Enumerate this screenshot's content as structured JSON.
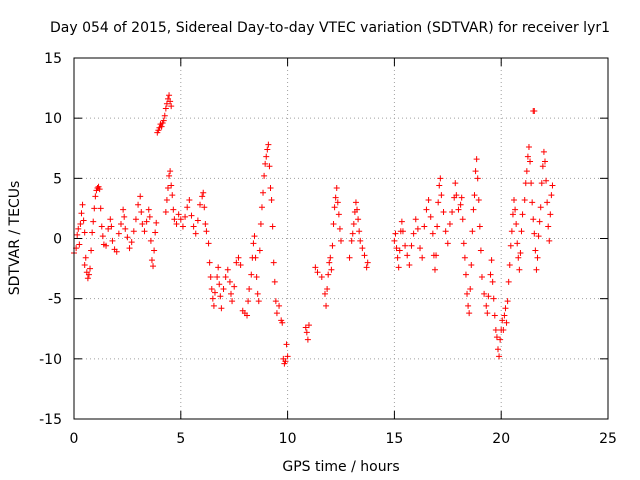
{
  "chart_data": {
    "type": "scatter",
    "title": "Day 054 of 2015, Sidereal Day-to-day VTEC variation (SDTVAR) for receiver lyr1",
    "xlabel": "GPS time / hours",
    "ylabel": "SDTVAR / TECUs",
    "xlim": [
      0,
      25
    ],
    "ylim": [
      -15,
      15
    ],
    "xticks": [
      "0",
      "5",
      "10",
      "15",
      "20",
      "25"
    ],
    "yticks": [
      "-15",
      "-10",
      "-5",
      "0",
      "5",
      "10",
      "15"
    ],
    "grid": true,
    "marker": "+",
    "color": "#ff0000",
    "series": [
      {
        "name": "SDTVAR",
        "points": [
          [
            0.0,
            -1.2
          ],
          [
            0.1,
            -0.8
          ],
          [
            0.15,
            0.3
          ],
          [
            0.2,
            0.8
          ],
          [
            0.25,
            -0.5
          ],
          [
            0.3,
            1.2
          ],
          [
            0.35,
            2.1
          ],
          [
            0.4,
            2.8
          ],
          [
            0.45,
            1.5
          ],
          [
            0.5,
            0.5
          ],
          [
            0.5,
            -2.2
          ],
          [
            0.55,
            -1.6
          ],
          [
            0.6,
            -2.8
          ],
          [
            0.65,
            -3.3
          ],
          [
            0.7,
            -3.0
          ],
          [
            0.75,
            -2.5
          ],
          [
            0.8,
            -1.0
          ],
          [
            0.85,
            0.5
          ],
          [
            0.9,
            1.4
          ],
          [
            0.95,
            2.5
          ],
          [
            1.0,
            3.5
          ],
          [
            1.05,
            4.0
          ],
          [
            1.1,
            4.2
          ],
          [
            1.15,
            4.3
          ],
          [
            1.2,
            4.1
          ],
          [
            1.25,
            2.5
          ],
          [
            1.3,
            1.0
          ],
          [
            1.35,
            0.2
          ],
          [
            1.4,
            -0.5
          ],
          [
            1.5,
            -0.6
          ],
          [
            1.6,
            0.8
          ],
          [
            1.7,
            1.6
          ],
          [
            1.75,
            1.0
          ],
          [
            1.8,
            -0.2
          ],
          [
            1.9,
            -0.9
          ],
          [
            2.0,
            -1.1
          ],
          [
            2.1,
            0.4
          ],
          [
            2.2,
            1.2
          ],
          [
            2.3,
            2.4
          ],
          [
            2.35,
            1.8
          ],
          [
            2.4,
            0.8
          ],
          [
            2.5,
            0.1
          ],
          [
            2.6,
            -0.8
          ],
          [
            2.7,
            -0.3
          ],
          [
            2.8,
            0.6
          ],
          [
            2.9,
            1.6
          ],
          [
            3.0,
            2.8
          ],
          [
            3.1,
            3.5
          ],
          [
            3.15,
            2.2
          ],
          [
            3.2,
            1.2
          ],
          [
            3.3,
            0.6
          ],
          [
            3.4,
            1.4
          ],
          [
            3.5,
            2.4
          ],
          [
            3.55,
            1.8
          ],
          [
            3.6,
            -0.2
          ],
          [
            3.65,
            -1.8
          ],
          [
            3.7,
            -2.3
          ],
          [
            3.75,
            -1.0
          ],
          [
            3.8,
            0.5
          ],
          [
            3.85,
            1.3
          ],
          [
            3.9,
            8.8
          ],
          [
            3.95,
            9.0
          ],
          [
            4.0,
            9.2
          ],
          [
            4.05,
            9.5
          ],
          [
            4.1,
            9.3
          ],
          [
            4.15,
            9.6
          ],
          [
            4.2,
            9.8
          ],
          [
            4.25,
            10.2
          ],
          [
            4.3,
            10.8
          ],
          [
            4.35,
            11.2
          ],
          [
            4.4,
            11.6
          ],
          [
            4.45,
            11.9
          ],
          [
            4.5,
            11.4
          ],
          [
            4.55,
            11.0
          ],
          [
            4.3,
            2.2
          ],
          [
            4.35,
            3.2
          ],
          [
            4.4,
            4.2
          ],
          [
            4.45,
            5.2
          ],
          [
            4.5,
            5.6
          ],
          [
            4.55,
            4.4
          ],
          [
            4.6,
            3.6
          ],
          [
            4.65,
            2.4
          ],
          [
            4.7,
            1.6
          ],
          [
            4.8,
            1.2
          ],
          [
            4.9,
            2.0
          ],
          [
            5.0,
            1.6
          ],
          [
            5.1,
            1.0
          ],
          [
            5.2,
            1.8
          ],
          [
            5.3,
            2.6
          ],
          [
            5.4,
            3.2
          ],
          [
            5.5,
            1.9
          ],
          [
            5.6,
            1.0
          ],
          [
            5.7,
            0.4
          ],
          [
            5.8,
            1.5
          ],
          [
            5.9,
            2.8
          ],
          [
            6.0,
            3.5
          ],
          [
            6.05,
            3.8
          ],
          [
            6.1,
            2.6
          ],
          [
            6.15,
            1.2
          ],
          [
            6.2,
            0.6
          ],
          [
            6.3,
            -0.4
          ],
          [
            6.35,
            -2.0
          ],
          [
            6.4,
            -3.2
          ],
          [
            6.45,
            -4.2
          ],
          [
            6.5,
            -5.0
          ],
          [
            6.55,
            -5.6
          ],
          [
            6.6,
            -4.5
          ],
          [
            6.7,
            -3.2
          ],
          [
            6.75,
            -2.4
          ],
          [
            6.8,
            -3.8
          ],
          [
            6.85,
            -4.8
          ],
          [
            6.9,
            -5.8
          ],
          [
            7.0,
            -4.2
          ],
          [
            7.1,
            -3.2
          ],
          [
            7.2,
            -2.6
          ],
          [
            7.3,
            -3.6
          ],
          [
            7.35,
            -4.6
          ],
          [
            7.4,
            -5.2
          ],
          [
            7.5,
            -4.0
          ],
          [
            7.6,
            -2.0
          ],
          [
            7.7,
            -1.6
          ],
          [
            7.8,
            -2.2
          ],
          [
            7.9,
            -6.0
          ],
          [
            8.0,
            -6.2
          ],
          [
            8.1,
            -6.4
          ],
          [
            8.15,
            -5.2
          ],
          [
            8.2,
            -4.2
          ],
          [
            8.3,
            -3.0
          ],
          [
            8.35,
            -1.6
          ],
          [
            8.4,
            -0.4
          ],
          [
            8.45,
            0.2
          ],
          [
            8.5,
            -1.6
          ],
          [
            8.55,
            -3.2
          ],
          [
            8.6,
            -4.6
          ],
          [
            8.65,
            -5.2
          ],
          [
            8.7,
            -1.0
          ],
          [
            8.75,
            1.2
          ],
          [
            8.8,
            2.6
          ],
          [
            8.85,
            3.8
          ],
          [
            8.9,
            5.2
          ],
          [
            8.95,
            6.2
          ],
          [
            9.0,
            6.8
          ],
          [
            9.05,
            7.4
          ],
          [
            9.1,
            7.8
          ],
          [
            9.15,
            6.0
          ],
          [
            9.2,
            4.2
          ],
          [
            9.25,
            3.2
          ],
          [
            9.3,
            1.0
          ],
          [
            9.35,
            -2.0
          ],
          [
            9.4,
            -3.6
          ],
          [
            9.45,
            -5.2
          ],
          [
            9.5,
            -6.2
          ],
          [
            9.6,
            -5.6
          ],
          [
            9.7,
            -6.8
          ],
          [
            9.75,
            -7.0
          ],
          [
            9.8,
            -10.0
          ],
          [
            9.85,
            -10.4
          ],
          [
            9.9,
            -10.2
          ],
          [
            9.95,
            -8.8
          ],
          [
            10.0,
            -9.8
          ],
          [
            10.85,
            -7.4
          ],
          [
            10.9,
            -7.8
          ],
          [
            10.95,
            -8.4
          ],
          [
            11.0,
            -7.2
          ],
          [
            11.3,
            -2.4
          ],
          [
            11.4,
            -2.8
          ],
          [
            11.6,
            -3.2
          ],
          [
            11.75,
            -4.6
          ],
          [
            11.8,
            -5.6
          ],
          [
            11.85,
            -4.2
          ],
          [
            11.9,
            -3.0
          ],
          [
            11.95,
            -2.0
          ],
          [
            12.0,
            -1.6
          ],
          [
            12.05,
            -2.6
          ],
          [
            12.1,
            -0.6
          ],
          [
            12.15,
            1.2
          ],
          [
            12.2,
            2.6
          ],
          [
            12.25,
            3.4
          ],
          [
            12.3,
            4.2
          ],
          [
            12.35,
            3.0
          ],
          [
            12.4,
            2.0
          ],
          [
            12.45,
            0.8
          ],
          [
            12.5,
            -0.2
          ],
          [
            12.9,
            -1.6
          ],
          [
            13.0,
            -0.2
          ],
          [
            13.05,
            0.4
          ],
          [
            13.1,
            1.2
          ],
          [
            13.15,
            2.2
          ],
          [
            13.2,
            3.0
          ],
          [
            13.25,
            2.4
          ],
          [
            13.3,
            1.6
          ],
          [
            13.35,
            0.6
          ],
          [
            13.4,
            -0.2
          ],
          [
            13.5,
            -0.8
          ],
          [
            13.6,
            -1.4
          ],
          [
            13.7,
            -2.4
          ],
          [
            13.75,
            -2.0
          ],
          [
            15.0,
            -0.2
          ],
          [
            15.05,
            0.4
          ],
          [
            15.1,
            -0.8
          ],
          [
            15.15,
            -1.6
          ],
          [
            15.2,
            -2.4
          ],
          [
            15.25,
            -1.0
          ],
          [
            15.3,
            0.6
          ],
          [
            15.35,
            1.4
          ],
          [
            15.4,
            0.6
          ],
          [
            15.5,
            -0.6
          ],
          [
            15.6,
            -1.4
          ],
          [
            15.7,
            -2.2
          ],
          [
            15.8,
            -0.6
          ],
          [
            15.9,
            0.4
          ],
          [
            16.0,
            1.6
          ],
          [
            16.1,
            0.8
          ],
          [
            16.2,
            -0.8
          ],
          [
            16.3,
            -1.6
          ],
          [
            16.4,
            1.0
          ],
          [
            16.5,
            2.4
          ],
          [
            16.6,
            3.2
          ],
          [
            16.7,
            1.8
          ],
          [
            16.8,
            0.4
          ],
          [
            16.85,
            -1.4
          ],
          [
            16.9,
            -2.6
          ],
          [
            16.95,
            -1.4
          ],
          [
            17.0,
            1.0
          ],
          [
            17.05,
            3.0
          ],
          [
            17.1,
            4.4
          ],
          [
            17.15,
            5.0
          ],
          [
            17.2,
            3.6
          ],
          [
            17.3,
            2.2
          ],
          [
            17.4,
            0.6
          ],
          [
            17.5,
            -0.4
          ],
          [
            17.6,
            1.2
          ],
          [
            17.7,
            2.2
          ],
          [
            17.8,
            3.4
          ],
          [
            17.85,
            4.6
          ],
          [
            17.9,
            3.6
          ],
          [
            18.0,
            2.4
          ],
          [
            18.1,
            2.8
          ],
          [
            18.15,
            3.4
          ],
          [
            18.2,
            1.6
          ],
          [
            18.25,
            -0.4
          ],
          [
            18.3,
            -1.6
          ],
          [
            18.35,
            -3.0
          ],
          [
            18.4,
            -4.6
          ],
          [
            18.45,
            -5.6
          ],
          [
            18.5,
            -6.2
          ],
          [
            18.55,
            -4.2
          ],
          [
            18.6,
            -2.2
          ],
          [
            18.65,
            0.6
          ],
          [
            18.7,
            2.4
          ],
          [
            18.75,
            3.6
          ],
          [
            18.8,
            5.6
          ],
          [
            18.85,
            6.6
          ],
          [
            18.9,
            5.0
          ],
          [
            18.95,
            3.2
          ],
          [
            19.0,
            1.0
          ],
          [
            19.05,
            -1.0
          ],
          [
            19.1,
            -3.2
          ],
          [
            19.2,
            -4.6
          ],
          [
            19.3,
            -5.6
          ],
          [
            19.35,
            -6.2
          ],
          [
            19.4,
            -4.8
          ],
          [
            19.5,
            -3.0
          ],
          [
            19.55,
            -1.8
          ],
          [
            19.6,
            -3.6
          ],
          [
            19.65,
            -5.0
          ],
          [
            19.7,
            -6.4
          ],
          [
            19.75,
            -7.6
          ],
          [
            19.8,
            -8.2
          ],
          [
            19.85,
            -9.2
          ],
          [
            19.9,
            -9.8
          ],
          [
            19.95,
            -8.4
          ],
          [
            20.0,
            -7.6
          ],
          [
            20.05,
            -6.8
          ],
          [
            20.1,
            -7.6
          ],
          [
            20.15,
            -6.4
          ],
          [
            20.2,
            -5.8
          ],
          [
            20.25,
            -7.0
          ],
          [
            20.3,
            -5.2
          ],
          [
            20.35,
            -3.6
          ],
          [
            20.4,
            -2.2
          ],
          [
            20.45,
            -0.6
          ],
          [
            20.5,
            0.6
          ],
          [
            20.55,
            2.0
          ],
          [
            20.6,
            3.2
          ],
          [
            20.65,
            2.4
          ],
          [
            20.7,
            1.2
          ],
          [
            20.75,
            -0.4
          ],
          [
            20.8,
            -1.6
          ],
          [
            20.85,
            -2.6
          ],
          [
            20.9,
            -1.2
          ],
          [
            20.95,
            0.6
          ],
          [
            21.0,
            2.0
          ],
          [
            21.1,
            3.2
          ],
          [
            21.15,
            4.6
          ],
          [
            21.2,
            5.6
          ],
          [
            21.25,
            6.8
          ],
          [
            21.3,
            7.6
          ],
          [
            21.35,
            6.4
          ],
          [
            21.4,
            4.6
          ],
          [
            21.45,
            3.0
          ],
          [
            21.5,
            1.6
          ],
          [
            21.55,
            0.4
          ],
          [
            21.6,
            -1.0
          ],
          [
            21.65,
            -2.6
          ],
          [
            21.7,
            -1.6
          ],
          [
            21.75,
            0.2
          ],
          [
            21.8,
            1.4
          ],
          [
            21.85,
            2.6
          ],
          [
            21.9,
            4.6
          ],
          [
            21.95,
            6.0
          ],
          [
            22.0,
            7.2
          ],
          [
            22.05,
            6.4
          ],
          [
            22.1,
            4.8
          ],
          [
            22.15,
            3.0
          ],
          [
            22.2,
            1.0
          ],
          [
            22.25,
            -0.2
          ],
          [
            22.3,
            2.0
          ],
          [
            22.35,
            3.6
          ],
          [
            22.4,
            4.4
          ],
          [
            21.5,
            10.6
          ],
          [
            21.55,
            10.6
          ]
        ]
      }
    ]
  }
}
